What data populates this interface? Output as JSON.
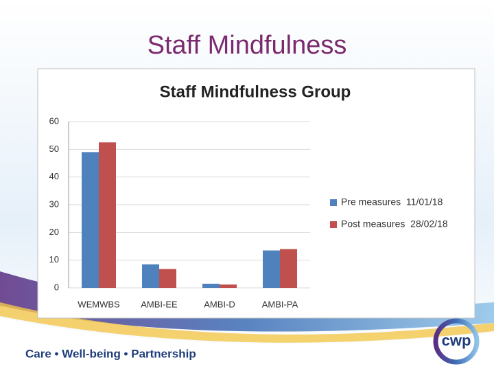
{
  "slide": {
    "title": "Staff Mindfulness",
    "footer": "Care • Well-being • Partnership",
    "logo": "cwp"
  },
  "chart_data": {
    "type": "bar",
    "title": "Staff Mindfulness Group",
    "categories": [
      "WEMWBS",
      "AMBI-EE",
      "AMBI-D",
      "AMBI-PA"
    ],
    "series": [
      {
        "name": "Pre measures  11/01/18",
        "color": "#4f81bd",
        "values": [
          49,
          8.5,
          1.5,
          13.5
        ]
      },
      {
        "name": "Post measures  28/02/18",
        "color": "#c0504d",
        "values": [
          52.5,
          6.8,
          1.2,
          14
        ]
      }
    ],
    "ylim": [
      0,
      60
    ],
    "yticks": [
      0,
      10,
      20,
      30,
      40,
      50,
      60
    ],
    "grid": true,
    "legend": "right"
  }
}
